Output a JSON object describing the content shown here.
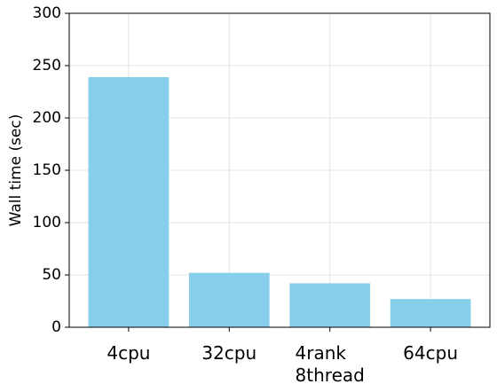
{
  "chart_data": {
    "type": "bar",
    "y_label": "Wall time (sec)",
    "categories": [
      "4cpu",
      "32cpu",
      "4rank\n8thread",
      "64cpu"
    ],
    "values": [
      239,
      52,
      42,
      27
    ],
    "color": "#87ceeb",
    "ylim": [
      0,
      300
    ],
    "yticks": [
      0,
      50,
      100,
      150,
      200,
      250,
      300
    ],
    "grid": true
  }
}
